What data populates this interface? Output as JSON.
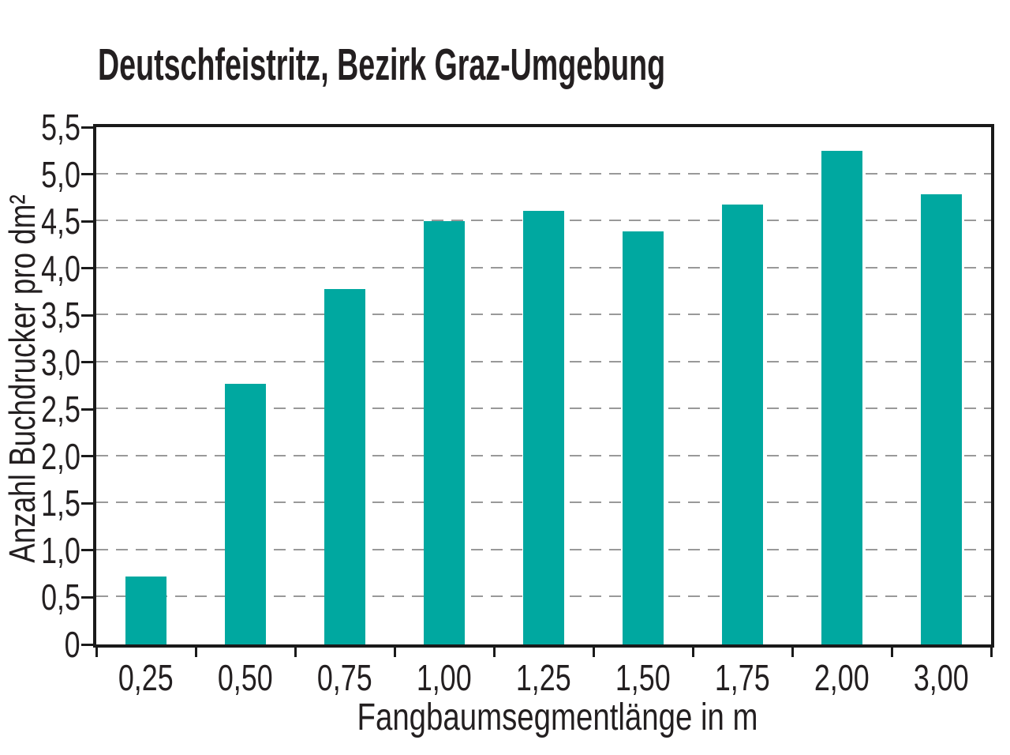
{
  "title": "Deutschfeistritz, Bezirk Graz-Umgebung",
  "chart_data": {
    "type": "bar",
    "title": "Deutschfeistritz, Bezirk Graz-Umgebung",
    "categories": [
      "0,25",
      "0,50",
      "0,75",
      "1,00",
      "1,25",
      "1,50",
      "1,75",
      "2,00",
      "3,00"
    ],
    "values": [
      0.72,
      2.77,
      3.78,
      4.5,
      4.61,
      4.39,
      4.68,
      5.25,
      4.79
    ],
    "xlabel": "Fangbaumsegmentlänge in m",
    "ylabel": "Anzahl Buchdrucker pro dm²",
    "ylim": [
      0,
      5.5
    ],
    "ytick_step": 0.5,
    "ytick_labels": [
      "0",
      "0,5",
      "1,0",
      "1,5",
      "2,0",
      "2,5",
      "3,0",
      "3,5",
      "4,0",
      "4,5",
      "5,0",
      "5,5"
    ],
    "grid": "horizontal-dashed",
    "legend_position": "none"
  },
  "colors": {
    "bar": "#00A8A0",
    "grid": "#999999",
    "frame": "#1A1A1A",
    "text": "#231F20",
    "background": "#FFFFFF"
  }
}
